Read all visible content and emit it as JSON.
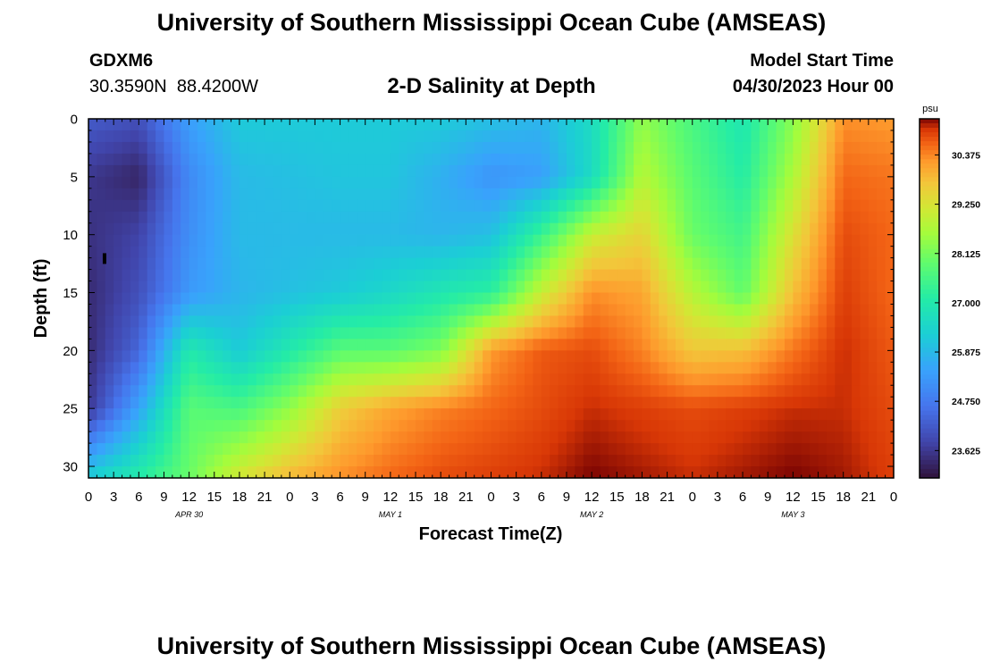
{
  "header": {
    "title": "University of Southern Mississippi Ocean Cube (AMSEAS)",
    "station_id": "GDXM6",
    "coords": "30.3590N  88.4200W",
    "subtitle": "2-D Salinity at Depth",
    "start_label": "Model Start Time",
    "start_value": "04/30/2023 Hour 00"
  },
  "footer": {
    "title": "University of Southern Mississippi Ocean Cube (AMSEAS)"
  },
  "chart_data": {
    "type": "heatmap",
    "title": "2-D Salinity at Depth",
    "xlabel": "Forecast Time(Z)",
    "ylabel": "Depth (ft)",
    "x_tick_labels": [
      "0",
      "3",
      "6",
      "9",
      "12",
      "15",
      "18",
      "21",
      "0",
      "3",
      "6",
      "9",
      "12",
      "15",
      "18",
      "21",
      "0",
      "3",
      "6",
      "9",
      "12",
      "15",
      "18",
      "21",
      "0",
      "3",
      "6",
      "9",
      "12",
      "15",
      "18",
      "21",
      "0"
    ],
    "x_day_labels": [
      "APR 30",
      "MAY 1",
      "MAY 2",
      "MAY 3"
    ],
    "xlim": [
      0,
      96
    ],
    "y_ticks": [
      0,
      5,
      10,
      15,
      20,
      25,
      30
    ],
    "ylim": [
      0,
      31
    ],
    "y_inverted": true,
    "colorbar": {
      "unit": "psu",
      "ticks": [
        "30.375",
        "29.250",
        "28.125",
        "27.000",
        "25.875",
        "24.750",
        "23.625"
      ],
      "tick_values": [
        30.375,
        29.25,
        28.125,
        27.0,
        25.875,
        24.75,
        23.625
      ],
      "range": [
        23.0,
        31.2
      ]
    },
    "grid_depths": [
      0,
      5,
      10,
      15,
      20,
      25,
      31
    ],
    "grid_hours": [
      0,
      6,
      12,
      18,
      24,
      30,
      36,
      42,
      48,
      54,
      60,
      66,
      72,
      78,
      84,
      90,
      96
    ],
    "salinity_grid": [
      [
        24.2,
        24.0,
        25.4,
        26.2,
        26.2,
        26.2,
        26.2,
        26.2,
        26.0,
        25.8,
        26.6,
        28.4,
        27.6,
        26.9,
        28.3,
        30.3,
        30.2
      ],
      [
        23.6,
        23.3,
        25.0,
        25.9,
        26.0,
        26.1,
        26.1,
        25.7,
        25.2,
        25.4,
        26.6,
        28.8,
        27.8,
        27.1,
        28.7,
        30.6,
        30.5
      ],
      [
        23.5,
        23.8,
        25.1,
        25.9,
        25.9,
        25.9,
        25.9,
        25.8,
        26.0,
        27.4,
        29.0,
        29.5,
        28.0,
        27.5,
        29.3,
        30.8,
        30.6
      ],
      [
        23.4,
        24.0,
        25.3,
        25.8,
        26.0,
        26.2,
        26.5,
        26.9,
        27.2,
        29.0,
        30.3,
        30.1,
        28.8,
        27.9,
        29.8,
        30.9,
        30.6
      ],
      [
        23.4,
        24.4,
        27.0,
        26.2,
        27.0,
        27.8,
        27.8,
        28.2,
        30.2,
        30.7,
        30.8,
        30.4,
        29.7,
        29.8,
        30.5,
        31.0,
        30.7
      ],
      [
        23.6,
        25.5,
        27.8,
        27.6,
        28.4,
        29.6,
        30.1,
        30.4,
        30.6,
        30.8,
        31.0,
        30.9,
        30.8,
        30.9,
        31.0,
        31.0,
        30.8
      ],
      [
        26.3,
        27.1,
        28.0,
        29.2,
        29.9,
        30.3,
        30.6,
        30.8,
        30.9,
        31.0,
        31.2,
        31.1,
        31.0,
        31.1,
        31.2,
        31.1,
        30.9
      ]
    ]
  }
}
